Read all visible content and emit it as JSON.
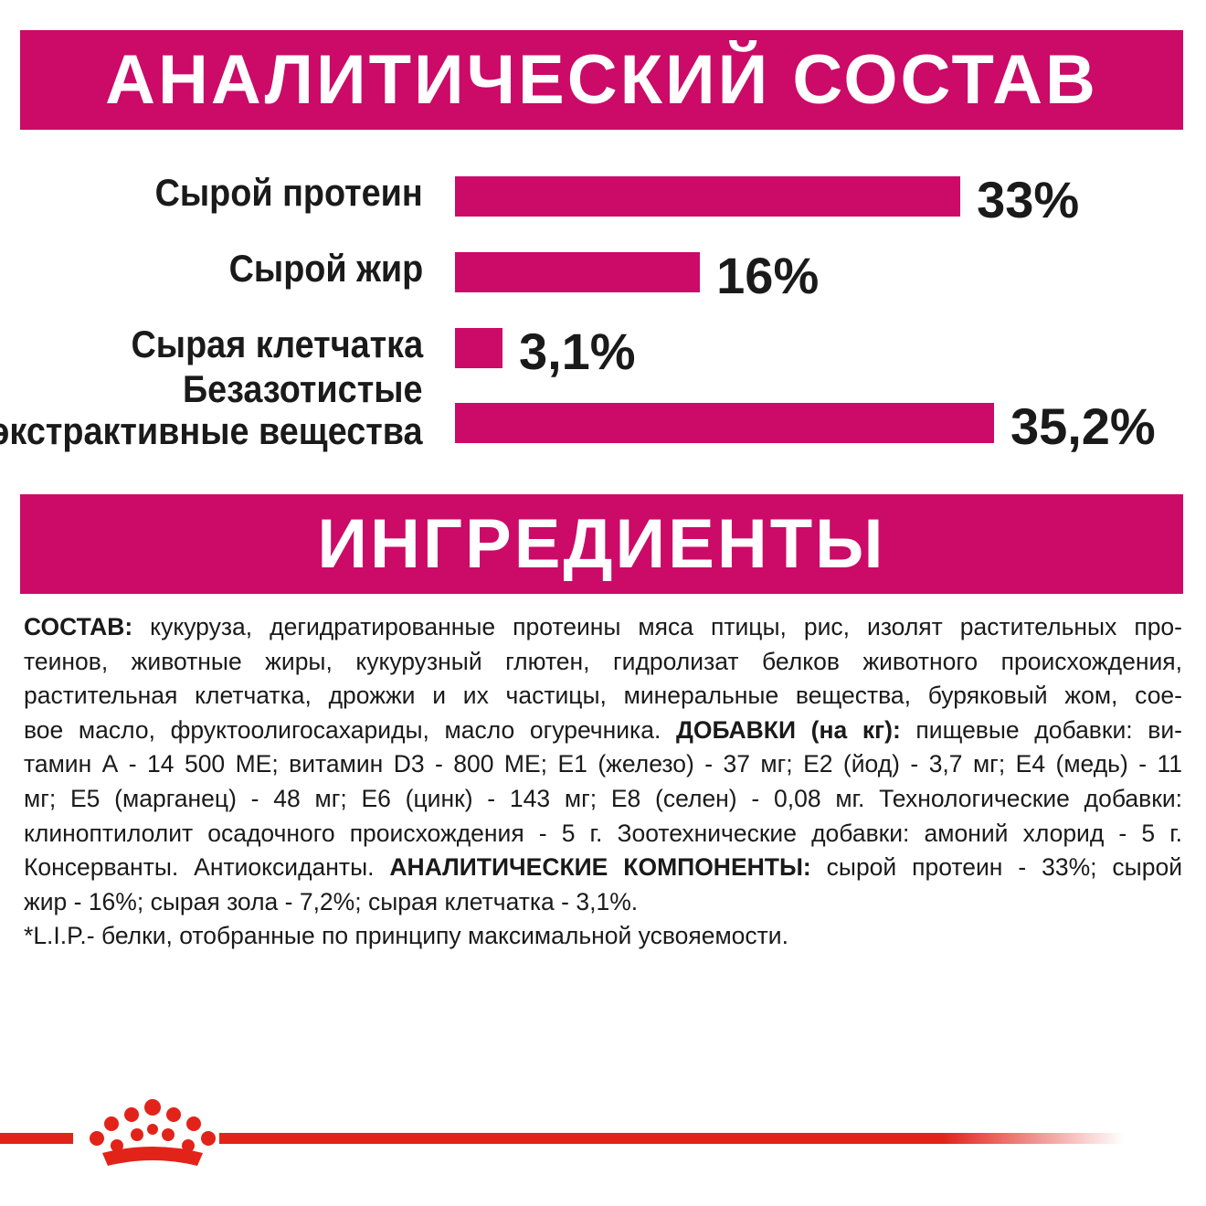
{
  "header": {
    "title": "АНАЛИТИЧЕСКИЙ СОСТАВ"
  },
  "chart_data": {
    "type": "bar",
    "orientation": "horizontal",
    "categories": [
      "Сырой протеин",
      "Сырой жир",
      "Сырая клетчатка",
      "Безазотистые экстрактивные вещества"
    ],
    "category_lines": [
      [
        "Сырой протеин"
      ],
      [
        "Сырой жир"
      ],
      [
        "Сырая клетчатка"
      ],
      [
        "Безазотистые",
        "экстрактивные вещества"
      ]
    ],
    "values": [
      33,
      16,
      3.1,
      35.2
    ],
    "value_labels": [
      "33%",
      "16%",
      "3,1%",
      "35,2%"
    ],
    "unit": "%",
    "bar_color": "#cc0a67",
    "grid": false
  },
  "ingredients": {
    "title": "ИНГРЕДИЕНТЫ",
    "lines": [
      [
        {
          "b": true,
          "t": "СОСТАВ:"
        },
        {
          "b": false,
          "t": " кукуруза, дегидратированные протеины мяса птицы, рис,  изолят растительных про-"
        }
      ],
      [
        {
          "b": false,
          "t": "теинов, животные жиры, кукурузный глютен, гидролизат белков животного происхождения,"
        }
      ],
      [
        {
          "b": false,
          "t": "растительная клетчатка, дрожжи и их частицы, минеральные вещества, буряковый жом, сое-"
        }
      ],
      [
        {
          "b": false,
          "t": "вое масло, фруктоолигосахариды, масло огуречника. "
        },
        {
          "b": true,
          "t": "ДОБАВКИ (на кг):"
        },
        {
          "b": false,
          "t": " пищевые добавки: ви-"
        }
      ],
      [
        {
          "b": false,
          "t": "тамин А - 14 500 МЕ; витамин D3 - 800 МЕ; Е1 (железо) - 37 мг; Е2 (йод) - 3,7 мг; Е4 (медь) - 11"
        }
      ],
      [
        {
          "b": false,
          "t": "мг; Е5 (марганец) - 48 мг; Е6 (цинк) - 143 мг; Е8 (селен) - 0,08 мг. Технологические добавки:"
        }
      ],
      [
        {
          "b": false,
          "t": "клиноптилолит осадочного происхождения - 5 г. Зоотехнические добавки: амоний хлорид - 5 г."
        }
      ],
      [
        {
          "b": false,
          "t": "Консерванты. Антиоксиданты. "
        },
        {
          "b": true,
          "t": "АНАЛИТИЧЕСКИЕ КОМПОНЕНТЫ:"
        },
        {
          "b": false,
          "t": " сырой протеин - 33%; сырой"
        }
      ],
      [
        {
          "b": false,
          "t": "жир - 16%; сырая зола - 7,2%; сырая клетчатка - 3,1%."
        }
      ],
      [
        {
          "b": false,
          "t": "*L.I.P.- белки, отобранные по принципу максимальной усвояемости."
        }
      ]
    ]
  },
  "logo": {
    "name": "crown-logo-icon",
    "color": "#e2231a"
  }
}
